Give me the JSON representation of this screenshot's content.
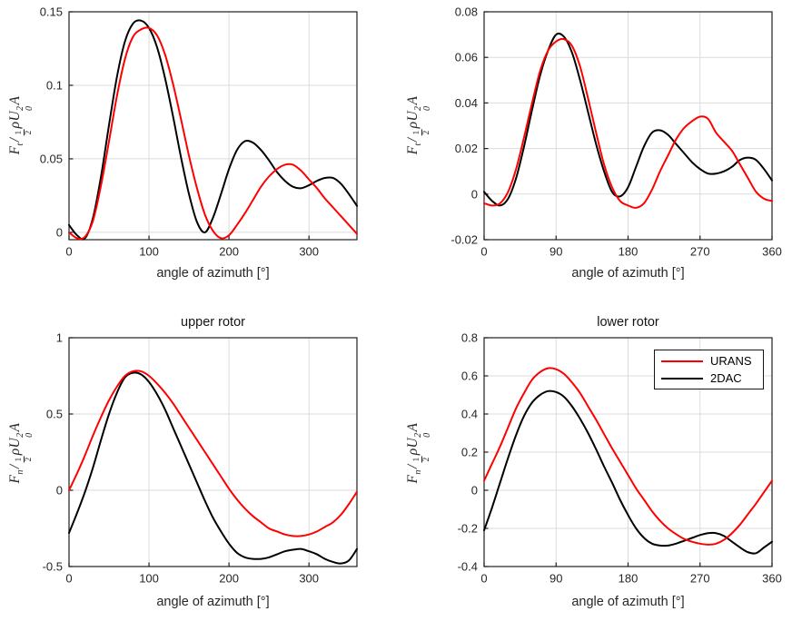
{
  "colors": {
    "urans": "#ff0000",
    "dac": "#000000",
    "grid": "#dbdbdb",
    "axis": "#1f1f1f",
    "tick_label": "#262626",
    "background": "#ffffff"
  },
  "legend": {
    "entries": [
      {
        "label": "URANS",
        "color": "#ff0000"
      },
      {
        "label": "2DAC",
        "color": "#000000"
      }
    ],
    "location": "northeast"
  },
  "math": {
    "F": "F",
    "sub_t": "t",
    "sub_n": "n",
    "slash": "/",
    "one": "1",
    "two": "2",
    "rho": "ρ",
    "U": "U",
    "sup_two": "2",
    "sub_zero": "0",
    "A": "A"
  },
  "chart_data": [
    {
      "id": "top-left",
      "type": "line",
      "title": "",
      "xlabel": "angle of azimuth [°]",
      "ylabel": "F_t / (1/2 rho U_0^2 A)",
      "xlim": [
        0,
        360
      ],
      "ylim": [
        -0.005,
        0.15
      ],
      "xticks": [
        0,
        100,
        200,
        300
      ],
      "xtick_labels": [
        "0",
        "100",
        "200",
        "300"
      ],
      "yticks": [
        0,
        0.05,
        0.1,
        0.15
      ],
      "ytick_labels": [
        "0",
        "0.05",
        "0.1",
        "0.15"
      ],
      "grid": true,
      "x": [
        0,
        10,
        20,
        30,
        40,
        50,
        60,
        70,
        80,
        90,
        100,
        110,
        120,
        130,
        140,
        150,
        160,
        170,
        180,
        190,
        200,
        210,
        220,
        230,
        240,
        250,
        260,
        270,
        280,
        290,
        300,
        310,
        320,
        330,
        340,
        350,
        360
      ],
      "series": [
        {
          "name": "2DAC",
          "color": "#000000",
          "y": [
            0.005,
            -0.002,
            -0.004,
            0.01,
            0.038,
            0.073,
            0.106,
            0.13,
            0.142,
            0.144,
            0.139,
            0.126,
            0.105,
            0.079,
            0.051,
            0.026,
            0.007,
            0.0,
            0.01,
            0.026,
            0.043,
            0.056,
            0.062,
            0.061,
            0.056,
            0.049,
            0.041,
            0.035,
            0.031,
            0.03,
            0.032,
            0.035,
            0.037,
            0.037,
            0.033,
            0.026,
            0.018
          ]
        },
        {
          "name": "URANS",
          "color": "#ff0000",
          "y": [
            0.0,
            -0.004,
            -0.003,
            0.008,
            0.032,
            0.062,
            0.093,
            0.118,
            0.133,
            0.138,
            0.139,
            0.134,
            0.121,
            0.101,
            0.077,
            0.052,
            0.03,
            0.012,
            0.001,
            -0.004,
            -0.002,
            0.005,
            0.013,
            0.022,
            0.031,
            0.038,
            0.043,
            0.046,
            0.046,
            0.042,
            0.036,
            0.03,
            0.023,
            0.017,
            0.011,
            0.005,
            -0.001
          ]
        }
      ]
    },
    {
      "id": "top-right",
      "type": "line",
      "title": "",
      "xlabel": "angle of azimuth [°]",
      "ylabel": "F_t / (1/2 rho U_0^2 A)",
      "xlim": [
        0,
        360
      ],
      "ylim": [
        -0.02,
        0.08
      ],
      "xticks": [
        0,
        90,
        180,
        270,
        360
      ],
      "xtick_labels": [
        "0",
        "90",
        "180",
        "270",
        "360"
      ],
      "yticks": [
        -0.02,
        0,
        0.02,
        0.04,
        0.06,
        0.08
      ],
      "ytick_labels": [
        "-0.02",
        "0",
        "0.02",
        "0.04",
        "0.06",
        "0.08"
      ],
      "grid": true,
      "x": [
        0,
        10,
        20,
        30,
        40,
        50,
        60,
        70,
        80,
        90,
        100,
        110,
        120,
        130,
        140,
        150,
        160,
        170,
        180,
        190,
        200,
        210,
        220,
        230,
        240,
        250,
        260,
        270,
        280,
        290,
        300,
        310,
        320,
        330,
        340,
        350,
        360
      ],
      "series": [
        {
          "name": "2DAC",
          "color": "#000000",
          "y": [
            0.001,
            -0.003,
            -0.005,
            -0.002,
            0.007,
            0.021,
            0.037,
            0.052,
            0.063,
            0.07,
            0.069,
            0.062,
            0.05,
            0.036,
            0.022,
            0.01,
            0.001,
            -0.001,
            0.003,
            0.012,
            0.021,
            0.027,
            0.028,
            0.026,
            0.022,
            0.018,
            0.014,
            0.011,
            0.009,
            0.009,
            0.01,
            0.012,
            0.015,
            0.016,
            0.015,
            0.011,
            0.006
          ]
        },
        {
          "name": "URANS",
          "color": "#ff0000",
          "y": [
            -0.004,
            -0.005,
            -0.004,
            0.001,
            0.011,
            0.025,
            0.04,
            0.054,
            0.063,
            0.067,
            0.068,
            0.065,
            0.056,
            0.042,
            0.027,
            0.013,
            0.003,
            -0.003,
            -0.005,
            -0.006,
            -0.004,
            0.002,
            0.01,
            0.017,
            0.024,
            0.029,
            0.032,
            0.034,
            0.033,
            0.027,
            0.023,
            0.019,
            0.013,
            0.007,
            0.001,
            -0.002,
            -0.003
          ]
        }
      ]
    },
    {
      "id": "bottom-left",
      "type": "line",
      "title": "upper rotor",
      "xlabel": "angle of azimuth [°]",
      "ylabel": "F_n / (1/2 rho U_0^2 A)",
      "xlim": [
        0,
        360
      ],
      "ylim": [
        -0.5,
        1
      ],
      "xticks": [
        0,
        100,
        200,
        300
      ],
      "xtick_labels": [
        "0",
        "100",
        "200",
        "300"
      ],
      "yticks": [
        -0.5,
        0,
        0.5,
        1
      ],
      "ytick_labels": [
        "-0.5",
        "0",
        "0.5",
        "1"
      ],
      "grid": true,
      "x": [
        0,
        10,
        20,
        30,
        40,
        50,
        60,
        70,
        80,
        90,
        100,
        110,
        120,
        130,
        140,
        150,
        160,
        170,
        180,
        190,
        200,
        210,
        220,
        230,
        240,
        250,
        260,
        270,
        280,
        290,
        300,
        310,
        320,
        330,
        340,
        350,
        360
      ],
      "series": [
        {
          "name": "2DAC",
          "color": "#000000",
          "y": [
            -0.28,
            -0.15,
            -0.01,
            0.15,
            0.33,
            0.5,
            0.64,
            0.74,
            0.77,
            0.76,
            0.71,
            0.63,
            0.53,
            0.41,
            0.29,
            0.17,
            0.05,
            -0.07,
            -0.18,
            -0.27,
            -0.35,
            -0.41,
            -0.44,
            -0.45,
            -0.45,
            -0.44,
            -0.42,
            -0.4,
            -0.39,
            -0.385,
            -0.4,
            -0.42,
            -0.45,
            -0.47,
            -0.48,
            -0.46,
            -0.385
          ]
        },
        {
          "name": "URANS",
          "color": "#ff0000",
          "y": [
            0.0,
            0.11,
            0.23,
            0.36,
            0.48,
            0.59,
            0.68,
            0.75,
            0.78,
            0.78,
            0.75,
            0.7,
            0.64,
            0.57,
            0.49,
            0.41,
            0.33,
            0.25,
            0.17,
            0.09,
            0.01,
            -0.06,
            -0.12,
            -0.17,
            -0.21,
            -0.25,
            -0.27,
            -0.29,
            -0.3,
            -0.3,
            -0.29,
            -0.27,
            -0.24,
            -0.21,
            -0.16,
            -0.09,
            -0.01
          ]
        }
      ]
    },
    {
      "id": "bottom-right",
      "type": "line",
      "title": "lower rotor",
      "xlabel": "angle of azimuth [°]",
      "ylabel": "F_n / (1/2 rho U_0^2 A)",
      "xlim": [
        0,
        360
      ],
      "ylim": [
        -0.4,
        0.8
      ],
      "xticks": [
        0,
        90,
        180,
        270,
        360
      ],
      "xtick_labels": [
        "0",
        "90",
        "180",
        "270",
        "360"
      ],
      "yticks": [
        -0.4,
        -0.2,
        0,
        0.2,
        0.4,
        0.6,
        0.8
      ],
      "ytick_labels": [
        "-0.4",
        "-0.2",
        "0",
        "0.2",
        "0.4",
        "0.6",
        "0.8"
      ],
      "grid": true,
      "legend_entries": [
        "URANS",
        "2DAC"
      ],
      "x": [
        0,
        10,
        20,
        30,
        40,
        50,
        60,
        70,
        80,
        90,
        100,
        110,
        120,
        130,
        140,
        150,
        160,
        170,
        180,
        190,
        200,
        210,
        220,
        230,
        240,
        250,
        260,
        270,
        280,
        290,
        300,
        310,
        320,
        330,
        340,
        350,
        360
      ],
      "series": [
        {
          "name": "2DAC",
          "color": "#000000",
          "y": [
            -0.21,
            -0.09,
            0.04,
            0.17,
            0.29,
            0.39,
            0.46,
            0.5,
            0.52,
            0.515,
            0.49,
            0.44,
            0.375,
            0.3,
            0.215,
            0.125,
            0.04,
            -0.05,
            -0.13,
            -0.2,
            -0.25,
            -0.28,
            -0.29,
            -0.29,
            -0.28,
            -0.265,
            -0.25,
            -0.235,
            -0.225,
            -0.225,
            -0.24,
            -0.27,
            -0.3,
            -0.325,
            -0.33,
            -0.3,
            -0.27
          ]
        },
        {
          "name": "URANS",
          "color": "#ff0000",
          "y": [
            0.05,
            0.14,
            0.23,
            0.33,
            0.43,
            0.51,
            0.58,
            0.62,
            0.64,
            0.635,
            0.61,
            0.565,
            0.51,
            0.44,
            0.37,
            0.295,
            0.22,
            0.15,
            0.08,
            0.01,
            -0.05,
            -0.11,
            -0.16,
            -0.2,
            -0.23,
            -0.255,
            -0.27,
            -0.28,
            -0.285,
            -0.28,
            -0.26,
            -0.225,
            -0.18,
            -0.125,
            -0.07,
            -0.01,
            0.05
          ]
        }
      ]
    }
  ]
}
